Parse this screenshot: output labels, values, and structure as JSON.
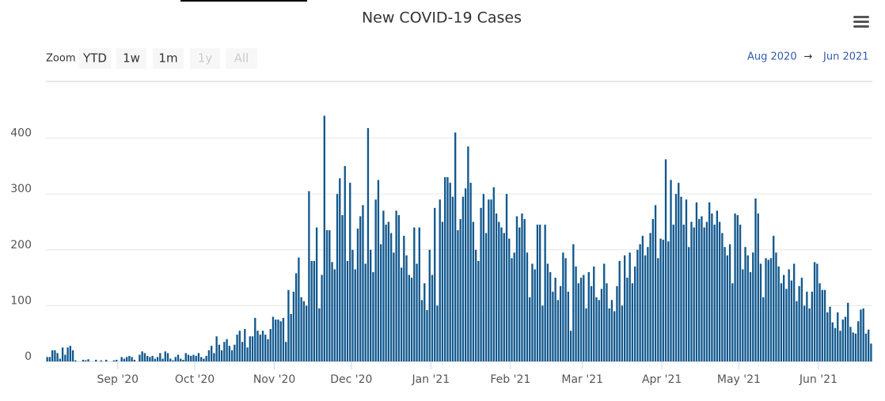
{
  "chart_data": {
    "type": "bar",
    "title": "New COVID-19 Cases",
    "zoom": {
      "label": "Zoom",
      "buttons": [
        {
          "label": "YTD",
          "enabled": true
        },
        {
          "label": "1w",
          "enabled": true
        },
        {
          "label": "1m",
          "enabled": true
        },
        {
          "label": "1y",
          "enabled": false
        },
        {
          "label": "All",
          "enabled": false
        }
      ]
    },
    "range": {
      "from": "Aug 2020",
      "arrow": "→",
      "to": "Jun 2021"
    },
    "color": "#11588e",
    "xlim": [
      0,
      322
    ],
    "xticks": [
      {
        "value": 28,
        "label": "Sep '20"
      },
      {
        "value": 58,
        "label": "Oct '20"
      },
      {
        "value": 89,
        "label": "Nov '20"
      },
      {
        "value": 119,
        "label": "Dec '20"
      },
      {
        "value": 150,
        "label": "Jan '21"
      },
      {
        "value": 181,
        "label": "Feb '21"
      },
      {
        "value": 209,
        "label": "Mar '21"
      },
      {
        "value": 240,
        "label": "Apr '21"
      },
      {
        "value": 270,
        "label": "May '21"
      },
      {
        "value": 301,
        "label": "Jun '21"
      }
    ],
    "ylim": [
      0,
      500
    ],
    "yticks": [
      0,
      100,
      200,
      300,
      400
    ],
    "grid": true,
    "values": [
      8,
      8,
      20,
      20,
      15,
      5,
      25,
      12,
      25,
      28,
      20,
      2,
      0,
      0,
      3,
      2,
      4,
      0,
      0,
      3,
      0,
      2,
      0,
      3,
      0,
      0,
      2,
      3,
      0,
      8,
      5,
      8,
      10,
      8,
      3,
      0,
      12,
      18,
      15,
      10,
      8,
      10,
      5,
      8,
      15,
      5,
      18,
      15,
      5,
      2,
      8,
      12,
      5,
      3,
      15,
      12,
      10,
      12,
      10,
      15,
      8,
      5,
      10,
      20,
      28,
      15,
      45,
      30,
      20,
      35,
      40,
      28,
      20,
      30,
      48,
      55,
      35,
      58,
      25,
      45,
      45,
      78,
      55,
      48,
      55,
      48,
      40,
      58,
      80,
      75,
      75,
      72,
      78,
      35,
      128,
      85,
      125,
      158,
      186,
      115,
      108,
      100,
      305,
      180,
      180,
      240,
      95,
      155,
      440,
      235,
      235,
      178,
      165,
      300,
      328,
      262,
      350,
      180,
      320,
      200,
      165,
      238,
      260,
      280,
      175,
      418,
      200,
      160,
      290,
      325,
      210,
      270,
      245,
      250,
      230,
      195,
      270,
      262,
      168,
      225,
      190,
      155,
      150,
      240,
      175,
      240,
      110,
      140,
      92,
      200,
      155,
      275,
      100,
      290,
      250,
      330,
      330,
      320,
      295,
      410,
      235,
      255,
      295,
      310,
      385,
      320,
      250,
      200,
      180,
      275,
      300,
      230,
      290,
      290,
      312,
      265,
      250,
      240,
      230,
      300,
      220,
      185,
      195,
      260,
      240,
      265,
      255,
      195,
      115,
      175,
      165,
      245,
      245,
      100,
      245,
      175,
      160,
      125,
      150,
      110,
      135,
      195,
      185,
      125,
      55,
      210,
      170,
      140,
      150,
      155,
      95,
      160,
      135,
      170,
      115,
      110,
      130,
      175,
      140,
      95,
      110,
      90,
      135,
      180,
      100,
      190,
      150,
      195,
      140,
      170,
      200,
      210,
      225,
      190,
      205,
      230,
      255,
      280,
      185,
      220,
      218,
      362,
      215,
      325,
      245,
      300,
      320,
      295,
      245,
      290,
      205,
      250,
      240,
      285,
      255,
      260,
      240,
      250,
      285,
      265,
      245,
      270,
      250,
      230,
      205,
      190,
      210,
      140,
      265,
      262,
      245,
      165,
      205,
      190,
      160,
      195,
      292,
      265,
      175,
      115,
      185,
      182,
      185,
      225,
      195,
      170,
      140,
      155,
      130,
      165,
      145,
      175,
      108,
      135,
      150,
      100,
      125,
      95,
      125,
      178,
      175,
      140,
      128,
      128,
      88,
      98,
      70,
      60,
      88,
      55,
      75,
      80,
      105,
      62,
      52,
      50,
      72,
      93,
      95,
      50,
      57,
      32
    ]
  }
}
